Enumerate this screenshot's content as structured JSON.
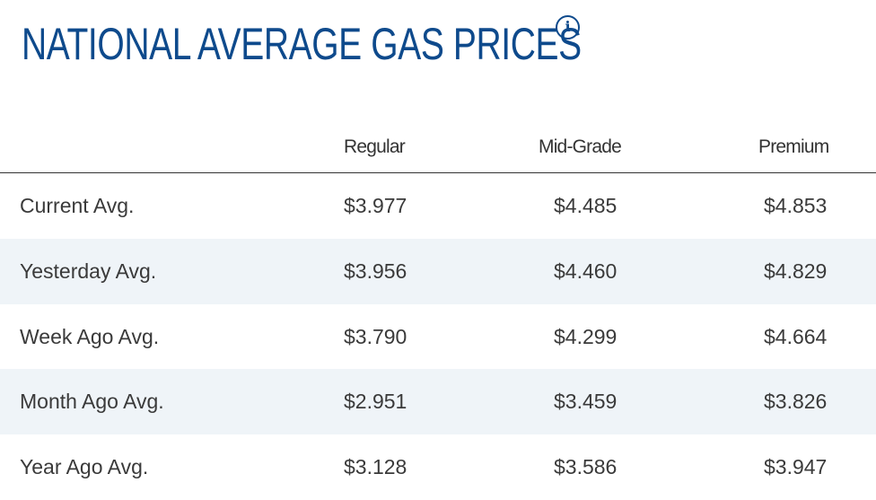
{
  "title": "NATIONAL AVERAGE GAS PRICES",
  "info_icon": "info-icon",
  "columns": [
    "Regular",
    "Mid-Grade",
    "Premium"
  ],
  "rows": [
    {
      "label": "Current Avg.",
      "values": [
        "$3.977",
        "$4.485",
        "$4.853"
      ]
    },
    {
      "label": "Yesterday Avg.",
      "values": [
        "$3.956",
        "$4.460",
        "$4.829"
      ]
    },
    {
      "label": "Week Ago Avg.",
      "values": [
        "$3.790",
        "$4.299",
        "$4.664"
      ]
    },
    {
      "label": "Month Ago Avg.",
      "values": [
        "$2.951",
        "$3.459",
        "$3.826"
      ]
    },
    {
      "label": "Year Ago Avg.",
      "values": [
        "$3.128",
        "$3.586",
        "$3.947"
      ]
    }
  ],
  "colors": {
    "title": "#0e4a8c",
    "alt_row": "#eff4f8",
    "text": "#3a3a3a"
  }
}
